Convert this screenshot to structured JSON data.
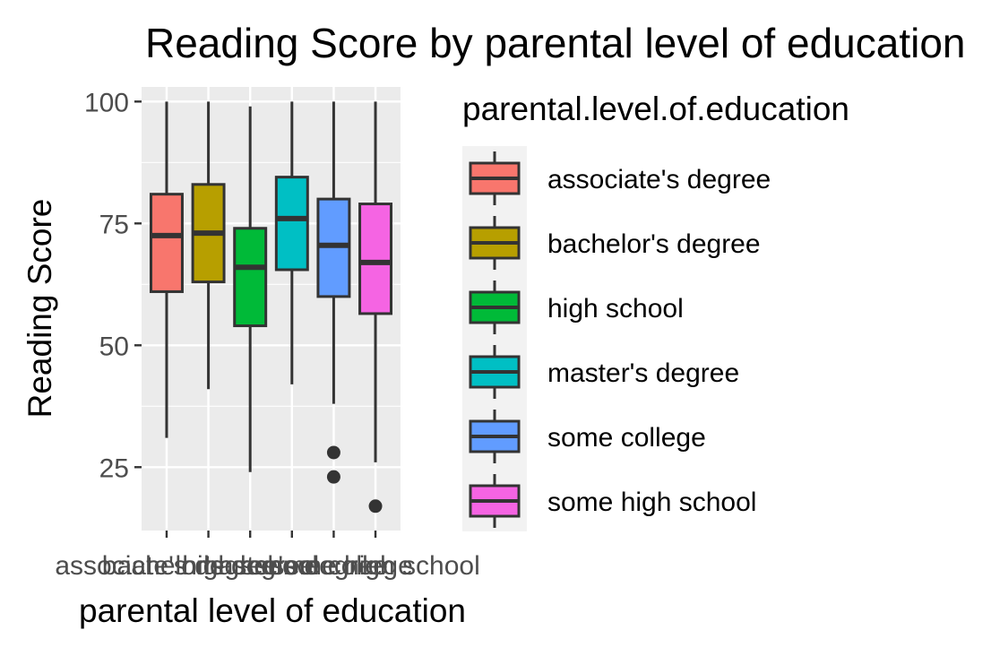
{
  "chart_data": {
    "type": "boxplot",
    "title": "Reading Score by parental level of education",
    "xlabel": "parental level of education",
    "ylabel": "Reading Score",
    "ylim": [
      12,
      103
    ],
    "yticks": [
      25,
      50,
      75,
      100
    ],
    "grid": true,
    "legend_title": "parental.level.of.education",
    "legend_placement": "right",
    "categories": [
      "associate's degree",
      "bachelor's degree",
      "high school",
      "master's degree",
      "some college",
      "some high school"
    ],
    "boxes": [
      {
        "name": "associate's degree",
        "color": "#F8766D",
        "whisker_low": 31,
        "q1": 61,
        "median": 72.5,
        "q3": 81,
        "whisker_high": 100,
        "outliers": []
      },
      {
        "name": "bachelor's degree",
        "color": "#B79F00",
        "whisker_low": 41,
        "q1": 63,
        "median": 73,
        "q3": 83,
        "whisker_high": 100,
        "outliers": []
      },
      {
        "name": "high school",
        "color": "#00BA38",
        "whisker_low": 24,
        "q1": 54,
        "median": 66,
        "q3": 74,
        "whisker_high": 99,
        "outliers": []
      },
      {
        "name": "master's degree",
        "color": "#00BFC4",
        "whisker_low": 42,
        "q1": 65.5,
        "median": 76,
        "q3": 84.5,
        "whisker_high": 100,
        "outliers": []
      },
      {
        "name": "some college",
        "color": "#619CFF",
        "whisker_low": 38,
        "q1": 60,
        "median": 70.5,
        "q3": 80,
        "whisker_high": 100,
        "outliers": [
          23,
          28
        ]
      },
      {
        "name": "some high school",
        "color": "#F564E3",
        "whisker_low": 26,
        "q1": 56.5,
        "median": 67,
        "q3": 79,
        "whisker_high": 100,
        "outliers": [
          17
        ]
      }
    ]
  }
}
